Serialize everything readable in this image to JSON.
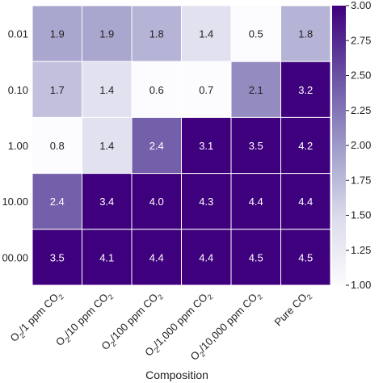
{
  "chart_data": {
    "type": "heatmap",
    "title": "",
    "xlabel": "Composition",
    "ylabel": "",
    "columns": [
      {
        "base": "O",
        "sub1": "2",
        "mid": "/1 ppm CO",
        "sub2": "2"
      },
      {
        "base": "O",
        "sub1": "2",
        "mid": "/10 ppm CO",
        "sub2": "2"
      },
      {
        "base": "O",
        "sub1": "2",
        "mid": "/100 ppm CO",
        "sub2": "2"
      },
      {
        "base": "O",
        "sub1": "2",
        "mid": "/1,000 ppm CO",
        "sub2": "2"
      },
      {
        "base": "O",
        "sub1": "2",
        "mid": "/10,000 ppm CO",
        "sub2": "2"
      },
      {
        "base": "Pure CO",
        "sub1": "2",
        "mid": "",
        "sub2": ""
      }
    ],
    "rows": [
      "0.01",
      "0.10",
      "1.00",
      "10.00",
      "00.00"
    ],
    "values": [
      [
        1.9,
        1.9,
        1.8,
        1.4,
        0.5,
        1.8
      ],
      [
        1.7,
        1.4,
        0.6,
        0.7,
        2.1,
        3.2
      ],
      [
        0.8,
        1.4,
        2.4,
        3.1,
        3.5,
        4.2
      ],
      [
        2.4,
        3.4,
        4.0,
        4.3,
        4.4,
        4.4
      ],
      [
        3.5,
        4.1,
        4.4,
        4.4,
        4.5,
        4.5
      ]
    ],
    "value_labels": [
      [
        "1.9",
        "1.9",
        "1.8",
        "1.4",
        "0.5",
        "1.8"
      ],
      [
        "1.7",
        "1.4",
        "0.6",
        "0.7",
        "2.1",
        "3.2"
      ],
      [
        "0.8",
        "1.4",
        "2.4",
        "3.1",
        "3.5",
        "4.2"
      ],
      [
        "2.4",
        "3.4",
        "4.0",
        "4.3",
        "4.4",
        "4.4"
      ],
      [
        "3.5",
        "4.1",
        "4.4",
        "4.4",
        "4.5",
        "4.5"
      ]
    ],
    "color_range": [
      1.0,
      3.0
    ],
    "colorbar_ticks": [
      "1.00",
      "1.25",
      "1.50",
      "1.75",
      "2.00",
      "2.25",
      "2.50",
      "2.75",
      "3.00"
    ],
    "colors": {
      "low": "#fcfbfd",
      "mid": "#9e9ac8",
      "high": "#3f007d"
    }
  }
}
